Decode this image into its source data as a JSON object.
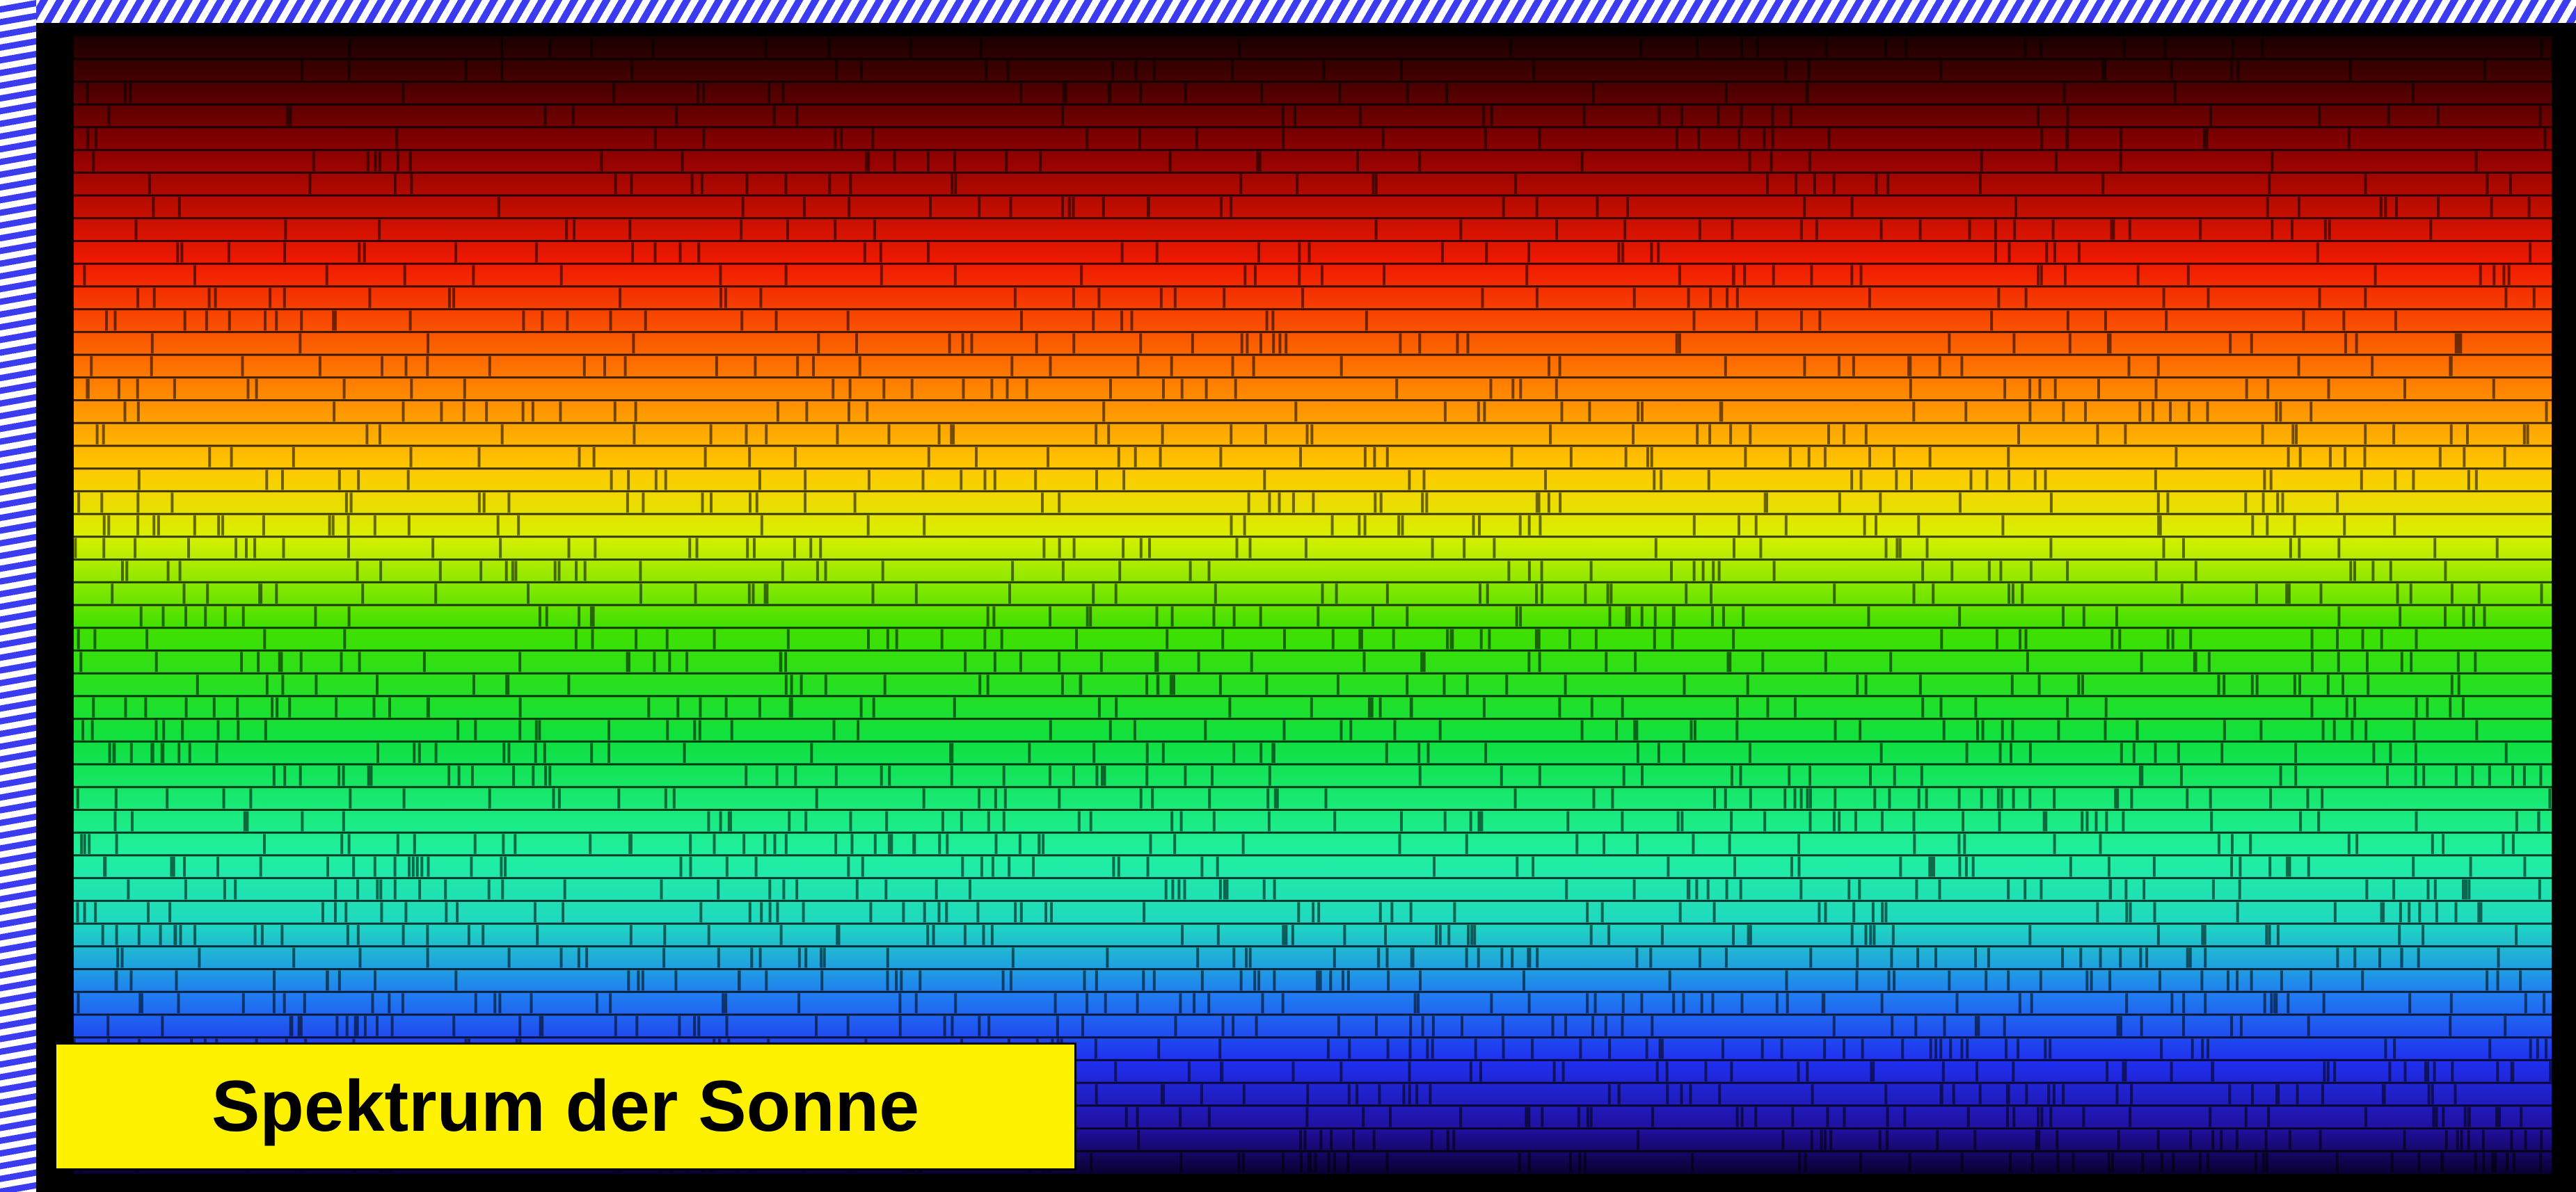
{
  "caption": "Spektrum der Sonne"
}
